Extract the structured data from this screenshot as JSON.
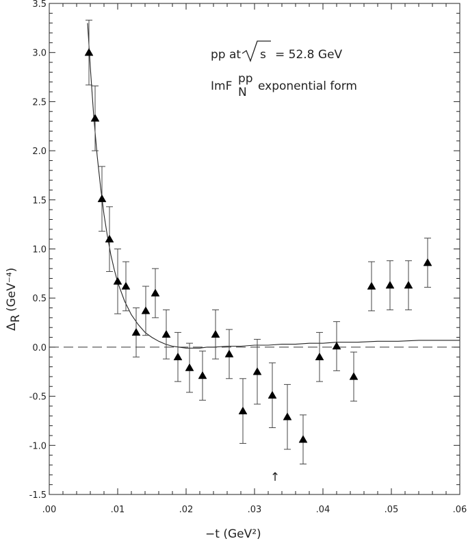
{
  "chart_data": {
    "type": "scatter",
    "xlabel": "−t  (GeV²)",
    "ylabel_main": "Δ",
    "ylabel_sub": "R",
    "ylabel_units": "(GeV⁻⁴)",
    "annotations": {
      "line1": "pp at",
      "line1_sqrt": "s",
      "line1_value": "= 52.8 GeV",
      "line2_main": "ImF",
      "line2_sub": "N",
      "line2_sup": "pp",
      "line2_tail": "exponential form"
    },
    "marker_arrow_x": 0.033,
    "marker_arrow_glyph": "↑",
    "xlim": [
      0.0,
      0.06
    ],
    "ylim": [
      -1.5,
      3.5
    ],
    "x_ticks": [
      0.0,
      0.01,
      0.02,
      0.03,
      0.04,
      0.05,
      0.06
    ],
    "x_tick_labels": [
      ".00",
      ".01",
      ".02",
      ".03",
      ".04",
      ".05",
      ".06"
    ],
    "y_ticks": [
      -1.5,
      -1.0,
      -0.5,
      0.0,
      0.5,
      1.0,
      1.5,
      2.0,
      2.5,
      3.0,
      3.5
    ],
    "y_tick_labels": [
      "-1.5",
      "-1.0",
      "-0.5",
      "0.0",
      "0.5",
      "1.0",
      "1.5",
      "2.0",
      "2.5",
      "3.0",
      "3.5"
    ],
    "grid": false,
    "reference_line": {
      "y": 0.0,
      "style": "dashed"
    },
    "points": [
      {
        "x": 0.0058,
        "y": 3.0,
        "err": 0.33
      },
      {
        "x": 0.0067,
        "y": 2.33,
        "err": 0.33
      },
      {
        "x": 0.0077,
        "y": 1.51,
        "err": 0.33
      },
      {
        "x": 0.0088,
        "y": 1.1,
        "err": 0.33
      },
      {
        "x": 0.01,
        "y": 0.67,
        "err": 0.33
      },
      {
        "x": 0.0112,
        "y": 0.62,
        "err": 0.25
      },
      {
        "x": 0.0127,
        "y": 0.15,
        "err": 0.25
      },
      {
        "x": 0.0141,
        "y": 0.37,
        "err": 0.25
      },
      {
        "x": 0.0155,
        "y": 0.55,
        "err": 0.25
      },
      {
        "x": 0.0171,
        "y": 0.13,
        "err": 0.25
      },
      {
        "x": 0.0188,
        "y": -0.1,
        "err": 0.25
      },
      {
        "x": 0.0205,
        "y": -0.21,
        "err": 0.25
      },
      {
        "x": 0.0224,
        "y": -0.29,
        "err": 0.25
      },
      {
        "x": 0.0243,
        "y": 0.13,
        "err": 0.25
      },
      {
        "x": 0.0263,
        "y": -0.07,
        "err": 0.25
      },
      {
        "x": 0.0283,
        "y": -0.65,
        "err": 0.33
      },
      {
        "x": 0.0304,
        "y": -0.25,
        "err": 0.33
      },
      {
        "x": 0.0326,
        "y": -0.49,
        "err": 0.33
      },
      {
        "x": 0.0348,
        "y": -0.71,
        "err": 0.33
      },
      {
        "x": 0.0371,
        "y": -0.94,
        "err": 0.25
      },
      {
        "x": 0.0395,
        "y": -0.1,
        "err": 0.25
      },
      {
        "x": 0.042,
        "y": 0.01,
        "err": 0.25
      },
      {
        "x": 0.0445,
        "y": -0.3,
        "err": 0.25
      },
      {
        "x": 0.0471,
        "y": 0.62,
        "err": 0.25
      },
      {
        "x": 0.0498,
        "y": 0.63,
        "err": 0.25
      },
      {
        "x": 0.0525,
        "y": 0.63,
        "err": 0.25
      },
      {
        "x": 0.0553,
        "y": 0.86,
        "err": 0.25
      }
    ],
    "curve": {
      "x": [
        0.0056,
        0.006,
        0.0065,
        0.007,
        0.0075,
        0.008,
        0.0085,
        0.009,
        0.0095,
        0.01,
        0.011,
        0.012,
        0.013,
        0.014,
        0.015,
        0.016,
        0.017,
        0.018,
        0.019,
        0.02,
        0.021,
        0.022,
        0.023,
        0.024,
        0.026,
        0.028,
        0.03,
        0.032,
        0.034,
        0.036,
        0.038,
        0.04,
        0.042,
        0.045,
        0.048,
        0.051,
        0.054,
        0.057,
        0.06
      ],
      "y": [
        3.3,
        2.85,
        2.35,
        1.95,
        1.63,
        1.35,
        1.13,
        0.94,
        0.79,
        0.66,
        0.47,
        0.33,
        0.23,
        0.15,
        0.1,
        0.06,
        0.03,
        0.01,
        0.0,
        -0.01,
        -0.01,
        -0.01,
        0.0,
        0.0,
        0.01,
        0.01,
        0.02,
        0.02,
        0.03,
        0.03,
        0.04,
        0.04,
        0.05,
        0.05,
        0.06,
        0.06,
        0.07,
        0.07,
        0.07
      ]
    }
  }
}
